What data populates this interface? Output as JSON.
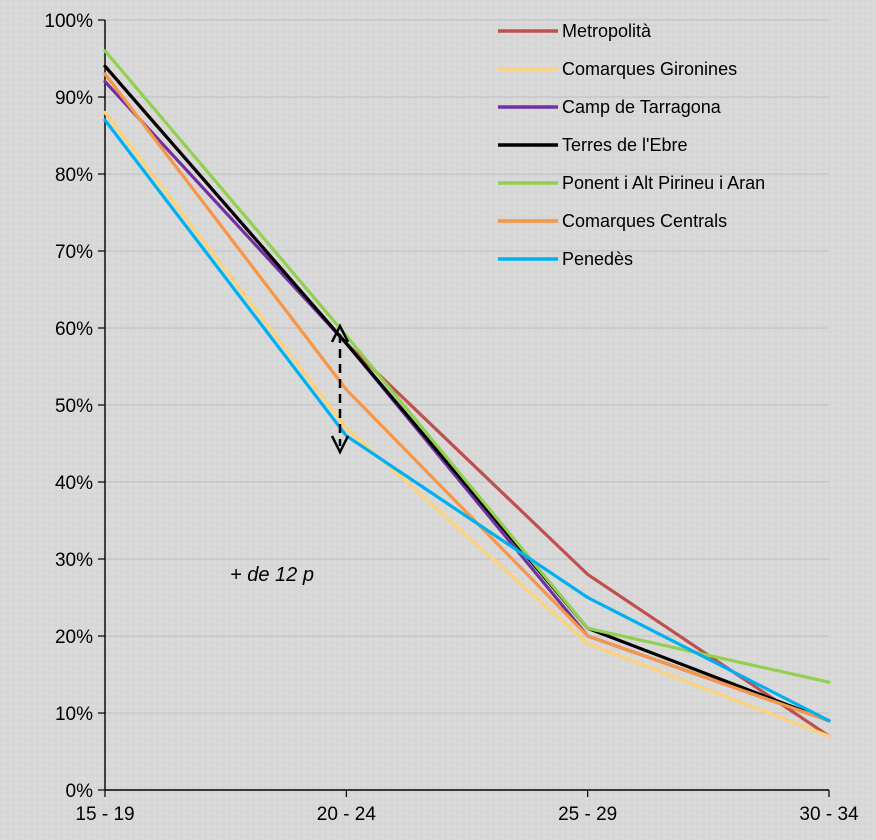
{
  "chart_data": {
    "type": "line",
    "title": "",
    "xlabel": "",
    "ylabel": "",
    "categories": [
      "15 - 19",
      "20 - 24",
      "25 - 29",
      "30 - 34"
    ],
    "y_ticks": [
      "0%",
      "10%",
      "20%",
      "30%",
      "40%",
      "50%",
      "60%",
      "70%",
      "80%",
      "90%",
      "100%"
    ],
    "ylim": [
      0,
      1
    ],
    "grid": true,
    "legend_position": "top-right",
    "series": [
      {
        "name": "Metropolità",
        "color": "#c0504d",
        "values": [
          0.94,
          0.58,
          0.28,
          0.07
        ]
      },
      {
        "name": "Comarques Gironines",
        "color": "#fcd27a",
        "values": [
          0.88,
          0.47,
          0.19,
          0.07
        ]
      },
      {
        "name": "Camp de Tarragona",
        "color": "#7030a0",
        "values": [
          0.92,
          0.58,
          0.2,
          0.09
        ]
      },
      {
        "name": "Terres de l'Ebre",
        "color": "#000000",
        "values": [
          0.94,
          0.58,
          0.21,
          0.09
        ]
      },
      {
        "name": "Ponent i Alt Pirineu i Aran",
        "color": "#92d050",
        "values": [
          0.96,
          0.59,
          0.21,
          0.14
        ]
      },
      {
        "name": "Comarques Centrals",
        "color": "#f79646",
        "values": [
          0.93,
          0.52,
          0.2,
          0.09
        ]
      },
      {
        "name": "Penedès",
        "color": "#00b0f0",
        "values": [
          0.87,
          0.46,
          0.25,
          0.09
        ]
      }
    ],
    "annotation": "+ de 12 p"
  }
}
